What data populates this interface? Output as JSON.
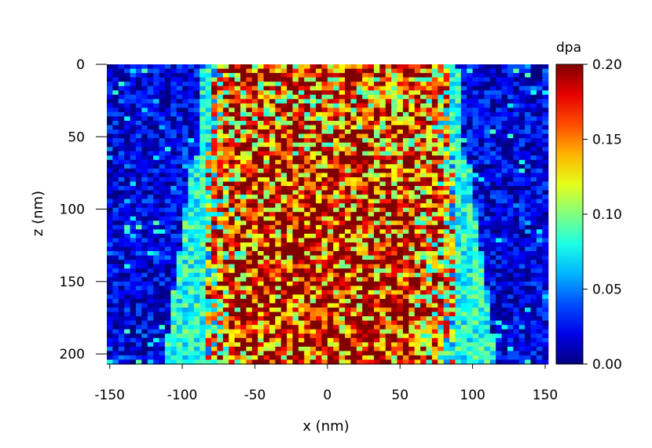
{
  "chart_data": {
    "type": "heatmap",
    "title": "",
    "xlabel": "x (nm)",
    "ylabel": "z (nm)",
    "xlim": [
      -152,
      150
    ],
    "ylim": [
      0,
      207
    ],
    "y_inverted": true,
    "x_ticks": [
      -150,
      -100,
      -50,
      0,
      50,
      100,
      150
    ],
    "x_tick_labels": [
      "-150",
      "-100",
      "-50",
      "0",
      "50",
      "100",
      "150"
    ],
    "y_ticks": [
      0,
      50,
      100,
      150,
      200
    ],
    "y_tick_labels": [
      "0",
      "50",
      "100",
      "150",
      "200"
    ],
    "colorbar": {
      "label": "dpa",
      "range": [
        0.0,
        0.2
      ],
      "ticks": [
        0.0,
        0.05,
        0.1,
        0.15,
        0.2
      ],
      "tick_labels": [
        "0.00",
        "0.05",
        "0.10",
        "0.15",
        "0.20"
      ],
      "colormap": "jet"
    },
    "regions": [
      {
        "description": "damaged core",
        "z_top": 0,
        "x_half_width_top": 88,
        "z_bottom": 207,
        "x_half_width_bottom": 92,
        "typical_dpa": 0.16
      },
      {
        "description": "outer halo",
        "z_top": 60,
        "x_half_width_top": 95,
        "z_bottom": 207,
        "x_half_width_bottom": 115,
        "typical_dpa": 0.08
      },
      {
        "description": "background",
        "typical_dpa": 0.02
      }
    ],
    "grid": false,
    "legend": "colorbar right"
  }
}
